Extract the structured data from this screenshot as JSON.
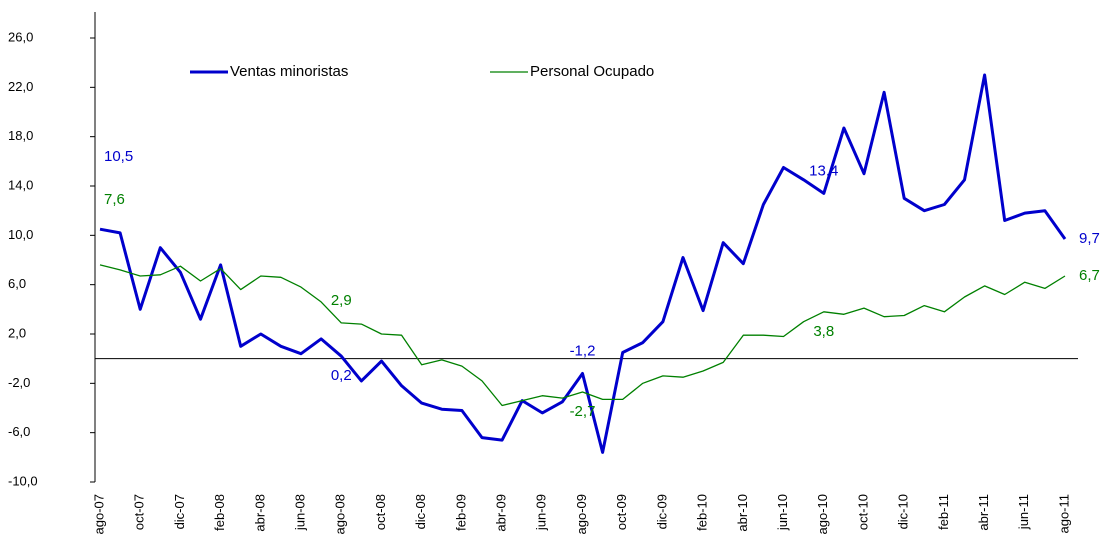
{
  "chart_data": {
    "type": "line",
    "categories": [
      "ago-07",
      null,
      "oct-07",
      null,
      "dic-07",
      null,
      "feb-08",
      null,
      "abr-08",
      null,
      "jun-08",
      null,
      "ago-08",
      null,
      "oct-08",
      null,
      "dic-08",
      null,
      "feb-09",
      null,
      "abr-09",
      null,
      "jun-09",
      null,
      "ago-09",
      null,
      "oct-09",
      null,
      "dic-09",
      null,
      "feb-10",
      null,
      "abr-10",
      null,
      "jun-10",
      null,
      "ago-10",
      null,
      "oct-10",
      null,
      "dic-10",
      null,
      "feb-11",
      null,
      "abr-11",
      null,
      "jun-11",
      null,
      "ago-11"
    ],
    "series": [
      {
        "name": "Ventas minoristas",
        "color": "#0000cc",
        "values": [
          10.5,
          10.2,
          4.0,
          9.0,
          7.0,
          3.2,
          7.6,
          1.0,
          2.0,
          1.0,
          0.4,
          1.6,
          0.2,
          -1.8,
          -0.2,
          -2.2,
          -3.6,
          -4.1,
          -4.2,
          -6.4,
          -6.6,
          -3.4,
          -4.4,
          -3.5,
          -1.2,
          -7.6,
          0.5,
          1.3,
          3.0,
          8.2,
          3.9,
          9.4,
          7.7,
          12.5,
          15.5,
          14.5,
          13.4,
          18.7,
          15.0,
          21.6,
          13.0,
          12.0,
          12.5,
          14.5,
          23.0,
          11.2,
          11.8,
          12.0,
          9.7
        ],
        "value_labels": [
          "10,5",
          null,
          null,
          null,
          null,
          null,
          null,
          null,
          null,
          null,
          null,
          null,
          "0,2",
          null,
          null,
          null,
          null,
          null,
          null,
          null,
          null,
          null,
          null,
          null,
          "-1,2",
          null,
          null,
          null,
          null,
          null,
          null,
          null,
          null,
          null,
          null,
          null,
          "13,4",
          null,
          null,
          null,
          null,
          null,
          null,
          null,
          null,
          null,
          null,
          null,
          "9,7"
        ]
      },
      {
        "name": "Personal Ocupado",
        "color": "#008000",
        "values": [
          7.6,
          7.2,
          6.7,
          6.8,
          7.5,
          6.3,
          7.3,
          5.6,
          6.7,
          6.6,
          5.8,
          4.6,
          2.9,
          2.8,
          2.0,
          1.9,
          -0.5,
          -0.1,
          -0.6,
          -1.8,
          -3.8,
          -3.4,
          -3.0,
          -3.2,
          -2.7,
          -3.3,
          -3.3,
          -2.0,
          -1.4,
          -1.5,
          -1.0,
          -0.3,
          1.9,
          1.9,
          1.8,
          3.0,
          3.8,
          3.6,
          4.1,
          3.4,
          3.5,
          4.3,
          3.8,
          5.0,
          5.9,
          5.2,
          6.2,
          5.7,
          6.7
        ],
        "value_labels": [
          "7,6",
          null,
          null,
          null,
          null,
          null,
          null,
          null,
          null,
          null,
          null,
          null,
          "2,9",
          null,
          null,
          null,
          null,
          null,
          null,
          null,
          null,
          null,
          null,
          null,
          "-2,7",
          null,
          null,
          null,
          null,
          null,
          null,
          null,
          null,
          null,
          null,
          null,
          "3,8",
          null,
          null,
          null,
          null,
          null,
          null,
          null,
          null,
          null,
          null,
          null,
          "6,7"
        ]
      }
    ],
    "ylim": [
      -10,
      26
    ],
    "yticks": [
      {
        "value": -10,
        "label": "-10,0"
      },
      {
        "value": -6,
        "label": "-6,0"
      },
      {
        "value": -2,
        "label": "-2,0"
      },
      {
        "value": 2,
        "label": "2,0"
      },
      {
        "value": 6,
        "label": "6,0"
      },
      {
        "value": 10,
        "label": "10,0"
      },
      {
        "value": 14,
        "label": "14,0"
      },
      {
        "value": 18,
        "label": "18,0"
      },
      {
        "value": 22,
        "label": "22,0"
      },
      {
        "value": 26,
        "label": "26,0"
      }
    ],
    "grid": false,
    "legend": "top-left"
  }
}
